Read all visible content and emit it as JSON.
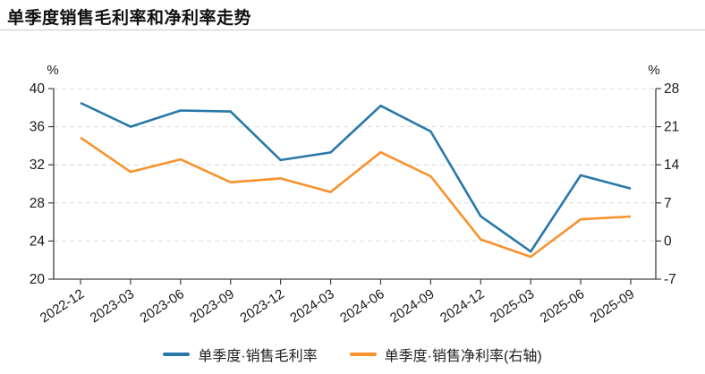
{
  "page": {
    "title": "单季度销售毛利率和净利率走势"
  },
  "chart_data": {
    "type": "line",
    "title": "单季度销售毛利率和净利率走势",
    "categories": [
      "2022-12",
      "2023-03",
      "2023-06",
      "2023-09",
      "2023-12",
      "2024-03",
      "2024-06",
      "2024-09",
      "2024-12",
      "2025-03",
      "2025-06",
      "2025-09"
    ],
    "series": [
      {
        "name": "单季度·销售毛利率",
        "axis": "left",
        "color": "#2878a8",
        "values": [
          38.5,
          36.0,
          37.7,
          37.6,
          32.5,
          33.3,
          38.2,
          35.5,
          26.6,
          22.9,
          30.9,
          29.5
        ]
      },
      {
        "name": "单季度·销售净利率(右轴)",
        "axis": "right",
        "color": "#f8922d",
        "values": [
          19.0,
          12.7,
          15.0,
          10.8,
          11.5,
          9.0,
          16.3,
          11.9,
          0.3,
          -2.9,
          4.0,
          4.5
        ]
      }
    ],
    "left_axis": {
      "unit_label": "%",
      "min": 20,
      "max": 40,
      "ticks": [
        40,
        36,
        32,
        28,
        24,
        20
      ]
    },
    "right_axis": {
      "unit_label": "%",
      "min": -7,
      "max": 28,
      "ticks": [
        28,
        21,
        14,
        7,
        0,
        -7
      ]
    },
    "grid": "horizontal-dashed",
    "grid_color": "#d9d9d9",
    "axis_color": "#404040",
    "legend_position": "bottom"
  }
}
